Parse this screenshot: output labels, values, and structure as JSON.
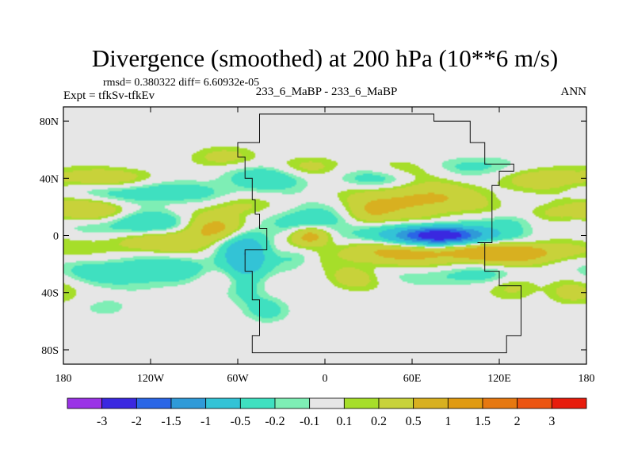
{
  "chart_data": {
    "type": "heatmap",
    "title": "Divergence (smoothed) at 200 hPa (10**6 m/s)",
    "stats": "rmsd= 0.380322 diff= 6.60932e-05",
    "experiment": "Expt = tfkSv-tfkEv",
    "case_label": "233_6_MaBP - 233_6_MaBP",
    "season": "ANN",
    "x_range": [
      -180,
      180
    ],
    "y_range": [
      -90,
      90
    ],
    "x_ticks": [
      {
        "value": -180,
        "label": "180"
      },
      {
        "value": -120,
        "label": "120W"
      },
      {
        "value": -60,
        "label": "60W"
      },
      {
        "value": 0,
        "label": "0"
      },
      {
        "value": 60,
        "label": "60E"
      },
      {
        "value": 120,
        "label": "120E"
      },
      {
        "value": 180,
        "label": "180"
      }
    ],
    "y_ticks": [
      {
        "value": 80,
        "label": "80N"
      },
      {
        "value": 40,
        "label": "40N"
      },
      {
        "value": 0,
        "label": "0"
      },
      {
        "value": -40,
        "label": "40S"
      },
      {
        "value": -80,
        "label": "80S"
      }
    ],
    "colorbar": {
      "colors": [
        "#9a33e6",
        "#3a28e0",
        "#2a66e6",
        "#2f9ad8",
        "#33c3d6",
        "#3fe0c0",
        "#7eeeb5",
        "#e6e6e6",
        "#a6de2a",
        "#c8d23a",
        "#d8b020",
        "#e09a10",
        "#e67810",
        "#ec5410",
        "#e81c0c"
      ],
      "labels": [
        "-3",
        "-2",
        "-1.5",
        "-1",
        "-0.5",
        "-0.2",
        "-0.1",
        "0.1",
        "0.2",
        "0.5",
        "1",
        "1.5",
        "2",
        "3"
      ]
    },
    "field_features": [
      {
        "lon": -75,
        "lat": 5,
        "value": 0.8,
        "sx": 22,
        "sy": 7
      },
      {
        "lon": -120,
        "lat": 8,
        "value": -0.6,
        "sx": 28,
        "sy": 6
      },
      {
        "lon": -160,
        "lat": 18,
        "value": 0.5,
        "sx": 20,
        "sy": 6
      },
      {
        "lon": -120,
        "lat": 30,
        "value": -0.4,
        "sx": 35,
        "sy": 6
      },
      {
        "lon": -150,
        "lat": 40,
        "value": 0.4,
        "sx": 25,
        "sy": 5
      },
      {
        "lon": -120,
        "lat": -5,
        "value": 0.4,
        "sx": 30,
        "sy": 6
      },
      {
        "lon": -100,
        "lat": -25,
        "value": -0.4,
        "sx": 30,
        "sy": 8
      },
      {
        "lon": -150,
        "lat": -25,
        "value": -0.3,
        "sx": 20,
        "sy": 6
      },
      {
        "lon": -70,
        "lat": -30,
        "value": 0.4,
        "sx": 18,
        "sy": 6
      },
      {
        "lon": -60,
        "lat": 20,
        "value": 0.3,
        "sx": 15,
        "sy": 5
      },
      {
        "lon": -55,
        "lat": -5,
        "value": -0.8,
        "sx": 12,
        "sy": 10
      },
      {
        "lon": -55,
        "lat": -25,
        "value": -0.6,
        "sx": 10,
        "sy": 12
      },
      {
        "lon": -40,
        "lat": 40,
        "value": -0.4,
        "sx": 20,
        "sy": 6
      },
      {
        "lon": -70,
        "lat": 55,
        "value": 0.3,
        "sx": 15,
        "sy": 5
      },
      {
        "lon": -10,
        "lat": 48,
        "value": 0.3,
        "sx": 15,
        "sy": 5
      },
      {
        "lon": -10,
        "lat": 10,
        "value": -0.5,
        "sx": 18,
        "sy": 7
      },
      {
        "lon": -10,
        "lat": 0,
        "value": 0.9,
        "sx": 10,
        "sy": 5
      },
      {
        "lon": -20,
        "lat": -15,
        "value": -0.3,
        "sx": 10,
        "sy": 5
      },
      {
        "lon": 30,
        "lat": 15,
        "value": 0.4,
        "sx": 12,
        "sy": 6
      },
      {
        "lon": 40,
        "lat": 40,
        "value": -0.4,
        "sx": 20,
        "sy": 5
      },
      {
        "lon": 65,
        "lat": 25,
        "value": 0.6,
        "sx": 30,
        "sy": 8
      },
      {
        "lon": 60,
        "lat": 45,
        "value": 0.3,
        "sx": 20,
        "sy": 6
      },
      {
        "lon": 100,
        "lat": 48,
        "value": -0.3,
        "sx": 25,
        "sy": 5
      },
      {
        "lon": 150,
        "lat": 40,
        "value": 0.35,
        "sx": 20,
        "sy": 6
      },
      {
        "lon": 80,
        "lat": 0,
        "value": -2.2,
        "sx": 18,
        "sy": 4
      },
      {
        "lon": 70,
        "lat": 0,
        "value": -0.6,
        "sx": 40,
        "sy": 5
      },
      {
        "lon": 60,
        "lat": -12,
        "value": 0.6,
        "sx": 40,
        "sy": 6
      },
      {
        "lon": 130,
        "lat": -12,
        "value": 0.8,
        "sx": 25,
        "sy": 5
      },
      {
        "lon": 100,
        "lat": -28,
        "value": -0.3,
        "sx": 30,
        "sy": 5
      },
      {
        "lon": 155,
        "lat": 15,
        "value": 0.3,
        "sx": 15,
        "sy": 5
      },
      {
        "lon": 130,
        "lat": 10,
        "value": -0.3,
        "sx": 15,
        "sy": 5
      },
      {
        "lon": 20,
        "lat": -30,
        "value": 0.3,
        "sx": 12,
        "sy": 6
      },
      {
        "lon": -40,
        "lat": -52,
        "value": -0.3,
        "sx": 10,
        "sy": 6
      },
      {
        "lon": 130,
        "lat": -35,
        "value": 0.3,
        "sx": 12,
        "sy": 6
      },
      {
        "lon": 170,
        "lat": -40,
        "value": 0.3,
        "sx": 12,
        "sy": 6
      },
      {
        "lon": -150,
        "lat": -50,
        "value": -0.2,
        "sx": 10,
        "sy": 4
      }
    ],
    "landmass_outline_lonlat": [
      [
        -45,
        85
      ],
      [
        -45,
        65
      ],
      [
        -60,
        65
      ],
      [
        -55,
        55
      ],
      [
        -50,
        40
      ],
      [
        -48,
        25
      ],
      [
        -45,
        15
      ],
      [
        -40,
        5
      ],
      [
        -55,
        -10
      ],
      [
        -50,
        -25
      ],
      [
        -45,
        -45
      ],
      [
        -50,
        -70
      ],
      [
        -50,
        -82
      ],
      [
        125,
        -82
      ],
      [
        125,
        -70
      ],
      [
        135,
        -70
      ],
      [
        135,
        -45
      ],
      [
        120,
        -35
      ],
      [
        110,
        -25
      ],
      [
        105,
        -5
      ],
      [
        115,
        -5
      ],
      [
        115,
        15
      ],
      [
        120,
        35
      ],
      [
        130,
        45
      ],
      [
        110,
        50
      ],
      [
        100,
        65
      ],
      [
        75,
        80
      ],
      [
        25,
        85
      ],
      [
        -45,
        85
      ]
    ]
  }
}
